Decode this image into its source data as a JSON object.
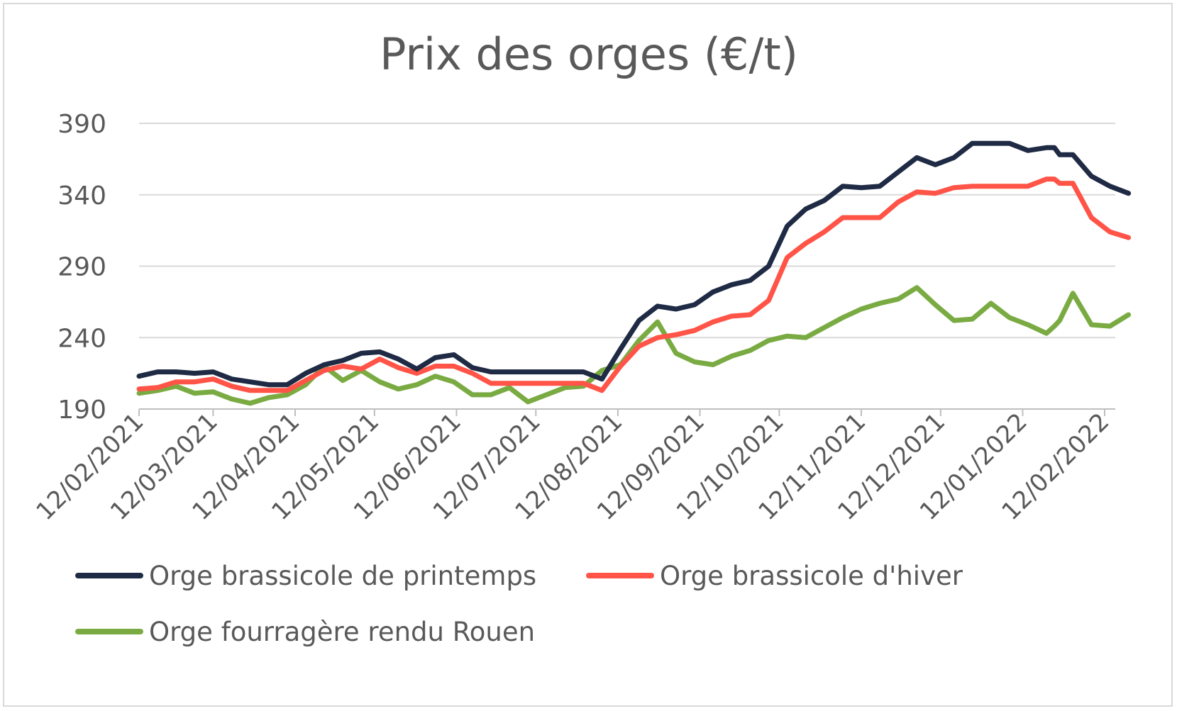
{
  "chart_data": {
    "type": "line",
    "title": "Prix des orges (€/t)",
    "xlabel": "",
    "ylabel": "",
    "ylim": [
      190,
      390
    ],
    "yticks": [
      190,
      240,
      290,
      340,
      390
    ],
    "x_tick_labels": [
      "12/02/2021",
      "12/03/2021",
      "12/04/2021",
      "12/05/2021",
      "12/06/2021",
      "12/07/2021",
      "12/08/2021",
      "12/09/2021",
      "12/10/2021",
      "12/11/2021",
      "12/12/2021",
      "12/01/2022",
      "12/02/2022"
    ],
    "grid": "horizontal",
    "legend_position": "bottom",
    "series": [
      {
        "name": "Orge brassicole de printemps",
        "color": "#1f2a44",
        "points": [
          [
            "2021-02-12",
            213
          ],
          [
            "2021-02-19",
            216
          ],
          [
            "2021-02-26",
            216
          ],
          [
            "2021-03-05",
            215
          ],
          [
            "2021-03-12",
            216
          ],
          [
            "2021-03-19",
            211
          ],
          [
            "2021-03-26",
            209
          ],
          [
            "2021-04-02",
            207
          ],
          [
            "2021-04-09",
            207
          ],
          [
            "2021-04-16",
            215
          ],
          [
            "2021-04-23",
            221
          ],
          [
            "2021-04-30",
            224
          ],
          [
            "2021-05-07",
            229
          ],
          [
            "2021-05-14",
            230
          ],
          [
            "2021-05-21",
            225
          ],
          [
            "2021-05-28",
            218
          ],
          [
            "2021-06-04",
            226
          ],
          [
            "2021-06-11",
            228
          ],
          [
            "2021-06-18",
            219
          ],
          [
            "2021-06-25",
            216
          ],
          [
            "2021-07-02",
            216
          ],
          [
            "2021-07-09",
            216
          ],
          [
            "2021-07-16",
            216
          ],
          [
            "2021-07-23",
            216
          ],
          [
            "2021-07-30",
            216
          ],
          [
            "2021-08-06",
            211
          ],
          [
            "2021-08-13",
            232
          ],
          [
            "2021-08-20",
            252
          ],
          [
            "2021-08-27",
            262
          ],
          [
            "2021-09-03",
            260
          ],
          [
            "2021-09-10",
            263
          ],
          [
            "2021-09-17",
            272
          ],
          [
            "2021-09-24",
            277
          ],
          [
            "2021-10-01",
            280
          ],
          [
            "2021-10-08",
            290
          ],
          [
            "2021-10-15",
            318
          ],
          [
            "2021-10-22",
            330
          ],
          [
            "2021-10-29",
            336
          ],
          [
            "2021-11-05",
            346
          ],
          [
            "2021-11-12",
            345
          ],
          [
            "2021-11-19",
            346
          ],
          [
            "2021-11-26",
            356
          ],
          [
            "2021-12-03",
            366
          ],
          [
            "2021-12-10",
            361
          ],
          [
            "2021-12-17",
            366
          ],
          [
            "2021-12-24",
            376
          ],
          [
            "2021-12-31",
            376
          ],
          [
            "2022-01-07",
            376
          ],
          [
            "2022-01-14",
            371
          ],
          [
            "2022-01-21",
            373
          ],
          [
            "2022-01-24",
            373
          ],
          [
            "2022-01-26",
            368
          ],
          [
            "2022-01-31",
            368
          ],
          [
            "2022-02-07",
            353
          ],
          [
            "2022-02-14",
            346
          ],
          [
            "2022-02-21",
            341
          ]
        ]
      },
      {
        "name": "Orge brassicole d'hiver",
        "color": "#ff5447",
        "points": [
          [
            "2021-02-12",
            204
          ],
          [
            "2021-02-19",
            205
          ],
          [
            "2021-02-26",
            209
          ],
          [
            "2021-03-05",
            209
          ],
          [
            "2021-03-12",
            211
          ],
          [
            "2021-03-19",
            206
          ],
          [
            "2021-03-26",
            203
          ],
          [
            "2021-04-02",
            203
          ],
          [
            "2021-04-09",
            203
          ],
          [
            "2021-04-16",
            210
          ],
          [
            "2021-04-23",
            217
          ],
          [
            "2021-04-30",
            220
          ],
          [
            "2021-05-07",
            218
          ],
          [
            "2021-05-14",
            225
          ],
          [
            "2021-05-21",
            219
          ],
          [
            "2021-05-28",
            215
          ],
          [
            "2021-06-04",
            220
          ],
          [
            "2021-06-11",
            220
          ],
          [
            "2021-06-18",
            215
          ],
          [
            "2021-06-25",
            208
          ],
          [
            "2021-07-02",
            208
          ],
          [
            "2021-07-09",
            208
          ],
          [
            "2021-07-16",
            208
          ],
          [
            "2021-07-23",
            208
          ],
          [
            "2021-07-30",
            208
          ],
          [
            "2021-08-06",
            203
          ],
          [
            "2021-08-13",
            220
          ],
          [
            "2021-08-20",
            234
          ],
          [
            "2021-08-27",
            240
          ],
          [
            "2021-09-03",
            242
          ],
          [
            "2021-09-10",
            245
          ],
          [
            "2021-09-17",
            251
          ],
          [
            "2021-09-24",
            255
          ],
          [
            "2021-10-01",
            256
          ],
          [
            "2021-10-08",
            266
          ],
          [
            "2021-10-15",
            296
          ],
          [
            "2021-10-22",
            306
          ],
          [
            "2021-10-29",
            314
          ],
          [
            "2021-11-05",
            324
          ],
          [
            "2021-11-12",
            324
          ],
          [
            "2021-11-19",
            324
          ],
          [
            "2021-11-26",
            335
          ],
          [
            "2021-12-03",
            342
          ],
          [
            "2021-12-10",
            341
          ],
          [
            "2021-12-17",
            345
          ],
          [
            "2021-12-24",
            346
          ],
          [
            "2021-12-31",
            346
          ],
          [
            "2022-01-07",
            346
          ],
          [
            "2022-01-14",
            346
          ],
          [
            "2022-01-21",
            351
          ],
          [
            "2022-01-24",
            351
          ],
          [
            "2022-01-26",
            348
          ],
          [
            "2022-01-31",
            348
          ],
          [
            "2022-02-07",
            324
          ],
          [
            "2022-02-14",
            314
          ],
          [
            "2022-02-21",
            310
          ]
        ]
      },
      {
        "name": "Orge fourragère rendu Rouen",
        "color": "#7aab43",
        "points": [
          [
            "2021-02-12",
            201
          ],
          [
            "2021-02-19",
            203
          ],
          [
            "2021-02-26",
            206
          ],
          [
            "2021-03-05",
            201
          ],
          [
            "2021-03-12",
            202
          ],
          [
            "2021-03-19",
            197
          ],
          [
            "2021-03-26",
            194
          ],
          [
            "2021-04-02",
            198
          ],
          [
            "2021-04-09",
            200
          ],
          [
            "2021-04-16",
            207
          ],
          [
            "2021-04-23",
            220
          ],
          [
            "2021-04-30",
            210
          ],
          [
            "2021-05-07",
            217
          ],
          [
            "2021-05-14",
            209
          ],
          [
            "2021-05-21",
            204
          ],
          [
            "2021-05-28",
            207
          ],
          [
            "2021-06-04",
            213
          ],
          [
            "2021-06-11",
            209
          ],
          [
            "2021-06-18",
            200
          ],
          [
            "2021-06-25",
            200
          ],
          [
            "2021-07-02",
            205
          ],
          [
            "2021-07-09",
            195
          ],
          [
            "2021-07-16",
            200
          ],
          [
            "2021-07-23",
            205
          ],
          [
            "2021-07-30",
            206
          ],
          [
            "2021-08-06",
            217
          ],
          [
            "2021-08-13",
            221
          ],
          [
            "2021-08-20",
            238
          ],
          [
            "2021-08-27",
            251
          ],
          [
            "2021-09-03",
            229
          ],
          [
            "2021-09-10",
            223
          ],
          [
            "2021-09-17",
            221
          ],
          [
            "2021-09-24",
            227
          ],
          [
            "2021-10-01",
            231
          ],
          [
            "2021-10-08",
            238
          ],
          [
            "2021-10-15",
            241
          ],
          [
            "2021-10-22",
            240
          ],
          [
            "2021-10-29",
            247
          ],
          [
            "2021-11-05",
            254
          ],
          [
            "2021-11-12",
            260
          ],
          [
            "2021-11-19",
            264
          ],
          [
            "2021-11-26",
            267
          ],
          [
            "2021-12-03",
            275
          ],
          [
            "2021-12-10",
            263
          ],
          [
            "2021-12-17",
            252
          ],
          [
            "2021-12-24",
            253
          ],
          [
            "2021-12-31",
            264
          ],
          [
            "2022-01-07",
            254
          ],
          [
            "2022-01-14",
            249
          ],
          [
            "2022-01-21",
            243
          ],
          [
            "2022-01-24",
            248
          ],
          [
            "2022-01-26",
            252
          ],
          [
            "2022-01-31",
            271
          ],
          [
            "2022-02-07",
            249
          ],
          [
            "2022-02-14",
            248
          ],
          [
            "2022-02-21",
            256
          ]
        ]
      }
    ]
  }
}
